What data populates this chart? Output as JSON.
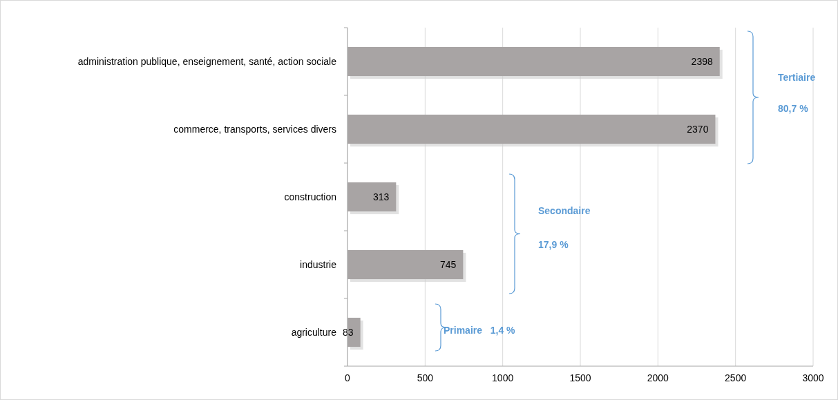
{
  "chart_data": {
    "type": "bar",
    "orientation": "horizontal",
    "categories": [
      "administration publique, enseignement, santé, action sociale",
      "commerce, transports, services divers",
      "construction",
      "industrie",
      "agriculture"
    ],
    "values": [
      2398,
      2370,
      313,
      745,
      83
    ],
    "color": "#a8a4a4",
    "xlim": [
      0,
      3000
    ],
    "xticks": [
      0,
      500,
      1000,
      1500,
      2000,
      2500,
      3000
    ],
    "grid": "x",
    "data_labels": true,
    "annotations": [
      "Tertiaire",
      "80,7 %",
      "Secondaire",
      "17,9 %",
      "Primaire   1,4 %"
    ]
  }
}
